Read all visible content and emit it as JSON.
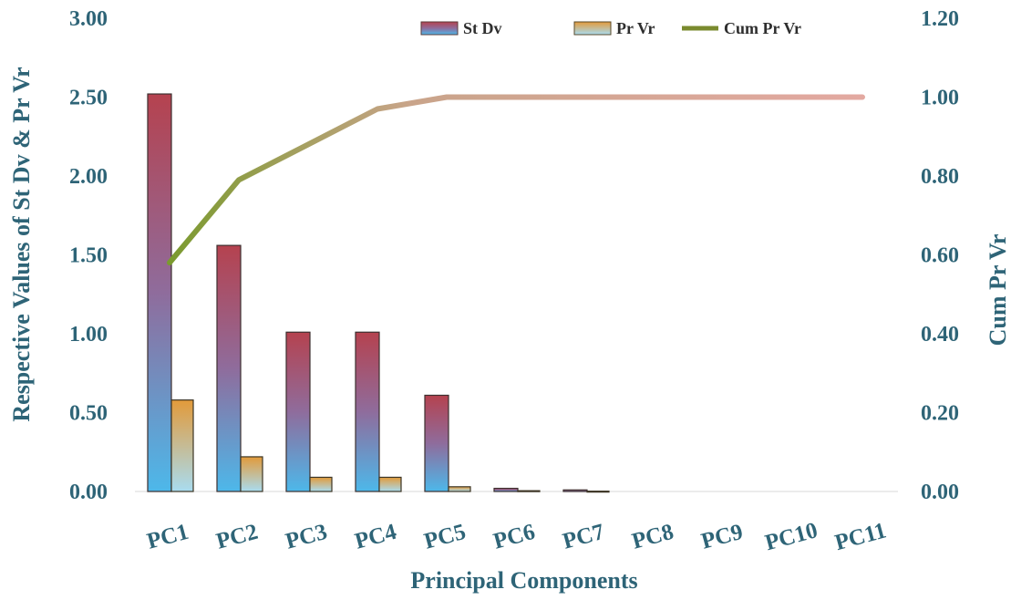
{
  "chart_data": {
    "type": "bar",
    "categories": [
      "PC1",
      "PC2",
      "PC3",
      "PC4",
      "PC5",
      "PC6",
      "PC7",
      "PC8",
      "PC9",
      "PC10",
      "PC11"
    ],
    "series": [
      {
        "name": "St Dv",
        "type": "bar",
        "axis": "left",
        "values": [
          2.52,
          1.56,
          1.01,
          1.01,
          0.61,
          0.02,
          0.01,
          0.0,
          0.0,
          0.0,
          0.0
        ]
      },
      {
        "name": "Pr Vr",
        "type": "bar",
        "axis": "left",
        "values": [
          0.58,
          0.22,
          0.09,
          0.09,
          0.03,
          0.005,
          0.002,
          0.0,
          0.0,
          0.0,
          0.0
        ]
      },
      {
        "name": "Cum Pr Vr",
        "type": "line",
        "axis": "right",
        "values": [
          0.58,
          0.79,
          0.88,
          0.97,
          1.0,
          1.0,
          1.0,
          1.0,
          1.0,
          1.0,
          1.0
        ]
      }
    ],
    "xlabel": "Principal Components",
    "ylabel": "Respective Values of St Dv & Pr Vr",
    "y2label": "Cum Pr Vr",
    "ylim": [
      0,
      3.0
    ],
    "y2lim": [
      0,
      1.2
    ],
    "yticks": [
      "0.00",
      "0.50",
      "1.00",
      "1.50",
      "2.00",
      "2.50",
      "3.00"
    ],
    "y2ticks": [
      "0.00",
      "0.20",
      "0.40",
      "0.60",
      "0.80",
      "1.00",
      "1.20"
    ],
    "grid": false,
    "legend_position": "top-right",
    "colors": {
      "st_dv_top": "#b5424f",
      "st_dv_bottom": "#4db8ea",
      "pr_vr_top": "#e29a3a",
      "pr_vr_bottom": "#a9dcf0",
      "cum_start": "#7a9a2e",
      "cum_end": "#e0a9a0",
      "axis_text": "#2e6477"
    }
  }
}
